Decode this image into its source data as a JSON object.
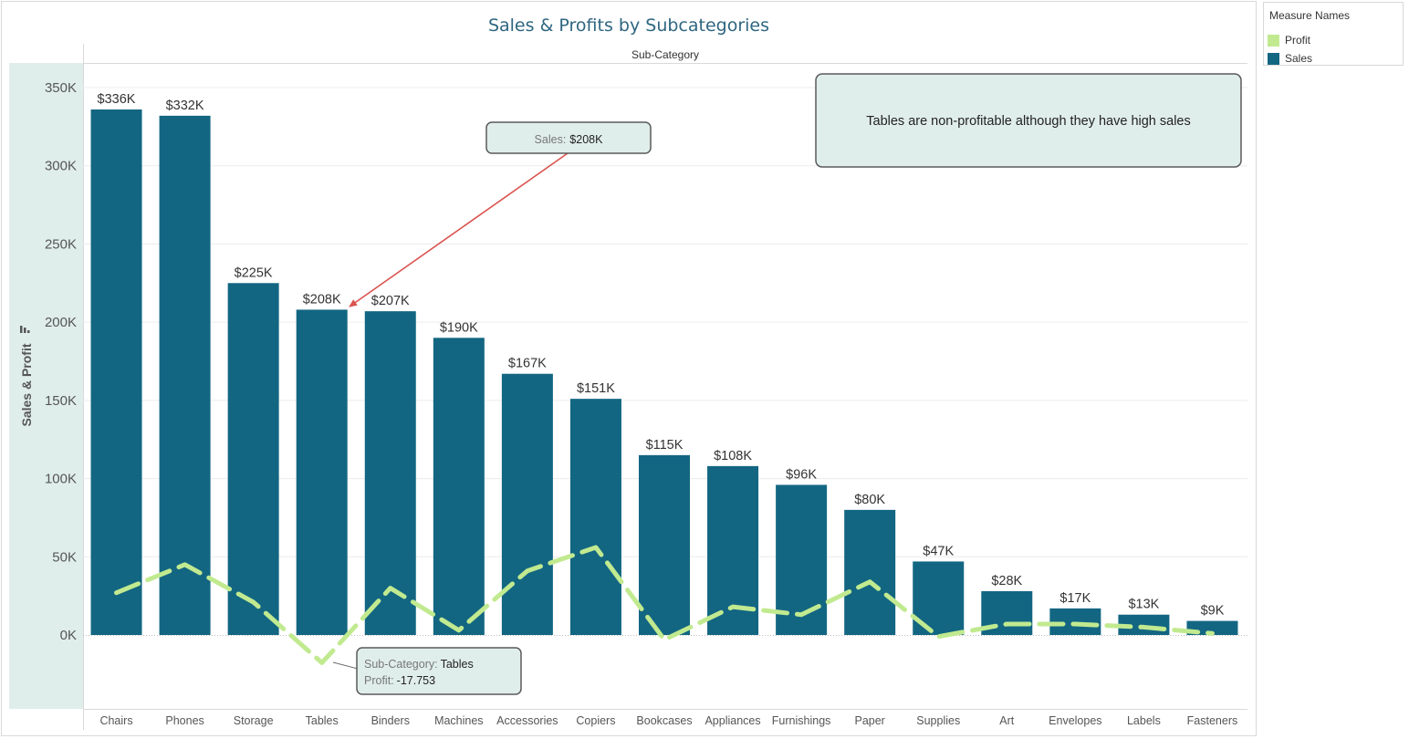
{
  "chart_data": {
    "type": "bar",
    "title": "Sales & Profits by Subcategories",
    "column_header": "Sub-Category",
    "ylabel": "Sales & Profit",
    "ylim": [
      -47000,
      350000
    ],
    "y_ticks": [
      {
        "value": 350000,
        "label": "350K"
      },
      {
        "value": 300000,
        "label": "300K"
      },
      {
        "value": 250000,
        "label": "250K"
      },
      {
        "value": 200000,
        "label": "200K"
      },
      {
        "value": 150000,
        "label": "150K"
      },
      {
        "value": 100000,
        "label": "100K"
      },
      {
        "value": 50000,
        "label": "50K"
      },
      {
        "value": 0,
        "label": "0K"
      }
    ],
    "grid": true,
    "categories": [
      "Chairs",
      "Phones",
      "Storage",
      "Tables",
      "Binders",
      "Machines",
      "Accessories",
      "Copiers",
      "Bookcases",
      "Appliances",
      "Furnishings",
      "Paper",
      "Supplies",
      "Art",
      "Envelopes",
      "Labels",
      "Fasteners"
    ],
    "series": [
      {
        "name": "Sales",
        "type": "bar",
        "color": "#136682",
        "values": [
          336000,
          332000,
          225000,
          208000,
          207000,
          190000,
          167000,
          151000,
          115000,
          108000,
          96000,
          80000,
          47000,
          28000,
          17000,
          13000,
          9000
        ],
        "labels": [
          "$336K",
          "$332K",
          "$225K",
          "$208K",
          "$207K",
          "$190K",
          "$167K",
          "$151K",
          "$115K",
          "$108K",
          "$96K",
          "$80K",
          "$47K",
          "$28K",
          "$17K",
          "$13K",
          "$9K"
        ]
      },
      {
        "name": "Profit",
        "type": "line",
        "style": "dashed",
        "color": "#c1ea90",
        "values": [
          27000,
          45000,
          21000,
          -17753,
          30000,
          3000,
          41000,
          56000,
          -3000,
          18000,
          13000,
          34000,
          -1000,
          7000,
          7000,
          5000,
          1000
        ]
      }
    ],
    "legend": {
      "title": "Measure Names",
      "position": "top-right",
      "items": [
        {
          "name": "Profit",
          "color": "#c1ea90"
        },
        {
          "name": "Sales",
          "color": "#136682"
        }
      ]
    },
    "annotations": {
      "note": "Tables are non-profitable although they have high sales",
      "sales_tooltip": {
        "prefix": "Sales:",
        "value": "$208K"
      },
      "profit_tooltip": {
        "category_prefix": "Sub-Category:",
        "category_value": "Tables",
        "profit_prefix": "Profit:",
        "profit_value": "-17.753"
      }
    }
  }
}
